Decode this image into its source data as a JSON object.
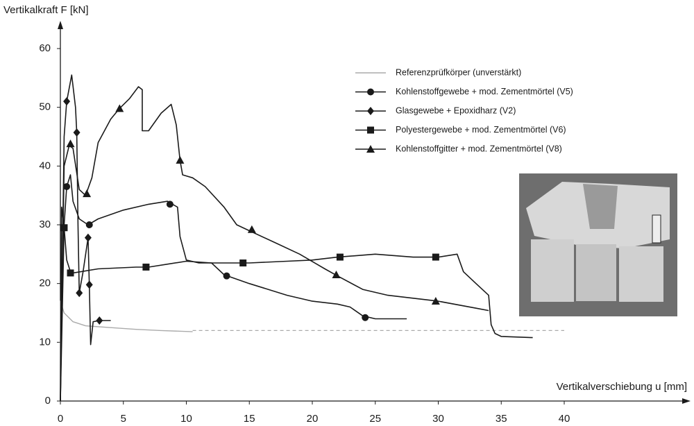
{
  "chart_data": {
    "type": "line",
    "y_label": "Vertikalkraft F [kN]",
    "x_label": "Vertikalverschiebung u [mm]",
    "xlim": [
      0,
      50
    ],
    "ylim": [
      0,
      64
    ],
    "xticks": [
      0,
      5,
      10,
      15,
      20,
      25,
      30,
      35,
      40
    ],
    "yticks": [
      0,
      10,
      20,
      30,
      40,
      50,
      60
    ],
    "grid": false,
    "legend": "upper right",
    "series": [
      {
        "name": "Referenzprüfkörper (unverstärkt)",
        "color": "#aaaaaa",
        "marker": "none",
        "x": [
          0,
          0,
          0.3,
          1,
          2,
          4,
          6,
          8,
          10.5
        ],
        "values": [
          0,
          17,
          15,
          13.5,
          12.8,
          12.5,
          12.2,
          12,
          11.8
        ],
        "marker_x": [],
        "marker_values": [],
        "dashed_extension": {
          "x": [
            10.5,
            40
          ],
          "values": [
            12,
            12
          ]
        }
      },
      {
        "name": "Kohlenstoffgewebe + mod. Zementmörtel (V5)",
        "color": "#1a1a1a",
        "marker": "circle",
        "x": [
          0,
          0.3,
          0.5,
          0.8,
          1,
          1.5,
          2.2,
          3,
          5,
          7,
          8.5,
          9.3,
          9.5,
          10,
          11,
          12,
          13,
          15,
          18,
          20,
          22,
          23,
          24,
          25,
          27.5
        ],
        "values": [
          0,
          30,
          36.5,
          38.5,
          34,
          31,
          30,
          31,
          32.5,
          33.5,
          34,
          33,
          28,
          24,
          23.5,
          23.5,
          21.5,
          20,
          18,
          17,
          16.5,
          16,
          14.5,
          14,
          14
        ],
        "marker_x": [
          0.5,
          2.3,
          8.7,
          13.2,
          24.2
        ],
        "marker_values": [
          36.5,
          30,
          33.5,
          21.3,
          14.2
        ]
      },
      {
        "name": "Glasgewebe + Epoxidharz (V2)",
        "color": "#1a1a1a",
        "marker": "diamond",
        "x": [
          0,
          0.3,
          0.5,
          0.9,
          1.2,
          1.3,
          1.4,
          1.5,
          1.8,
          2.2,
          2.3,
          2.4,
          2.6,
          3.1,
          4
        ],
        "values": [
          0,
          45,
          51,
          55.5,
          50,
          45.7,
          30,
          18.4,
          22,
          27.8,
          19.8,
          9.6,
          13.5,
          13.7,
          13.7
        ],
        "marker_x": [
          0.5,
          1.3,
          1.5,
          2.2,
          2.3,
          3.1
        ],
        "marker_values": [
          51,
          45.7,
          18.4,
          27.8,
          19.8,
          13.7
        ]
      },
      {
        "name": "Polyestergewebe + mod. Zementmörtel (V6)",
        "color": "#1a1a1a",
        "marker": "square",
        "x": [
          0,
          0.1,
          0.3,
          0.5,
          0.8,
          1,
          3,
          6,
          7,
          10,
          12,
          15,
          18,
          20,
          22,
          25,
          28,
          30,
          31.5,
          32,
          33,
          34,
          34.2,
          34.5,
          35,
          37.5
        ],
        "values": [
          0,
          33,
          29.5,
          24,
          22,
          21.8,
          22.5,
          22.8,
          22.8,
          23.8,
          23.5,
          23.5,
          23.8,
          24,
          24.5,
          25,
          24.5,
          24.5,
          25,
          22,
          20,
          18,
          13,
          11.5,
          11,
          10.8
        ],
        "marker_x": [
          0.3,
          0.8,
          6.8,
          14.5,
          22.2,
          29.8
        ],
        "marker_values": [
          29.5,
          21.8,
          22.8,
          23.5,
          24.5,
          24.5
        ]
      },
      {
        "name": "Kohlenstoffgitter + mod. Zementmörtel (V8)",
        "color": "#1a1a1a",
        "marker": "triangle",
        "x": [
          0,
          0.3,
          0.7,
          1,
          1.5,
          2,
          2.5,
          3,
          4,
          4.7,
          5.5,
          6.2,
          6.5,
          6.5,
          7,
          8,
          8.8,
          9.2,
          9.5,
          9.7,
          10.5,
          11.5,
          13,
          14,
          15,
          17,
          19,
          21,
          22,
          24,
          26,
          28,
          30,
          33,
          34
        ],
        "values": [
          0,
          40,
          43.5,
          43,
          36,
          35,
          38,
          44,
          48,
          49.8,
          51.5,
          53.5,
          53,
          46,
          46,
          49,
          50.5,
          47,
          41,
          38.5,
          38,
          36.5,
          33,
          30,
          29,
          27,
          25,
          22.5,
          21.3,
          19,
          18,
          17.5,
          17,
          15.8,
          15.4
        ],
        "marker_x": [
          0.8,
          2.1,
          4.7,
          9.5,
          15.2,
          21.9,
          29.8
        ],
        "marker_values": [
          43.8,
          35.3,
          49.8,
          41,
          29.2,
          21.5,
          17
        ]
      }
    ]
  }
}
